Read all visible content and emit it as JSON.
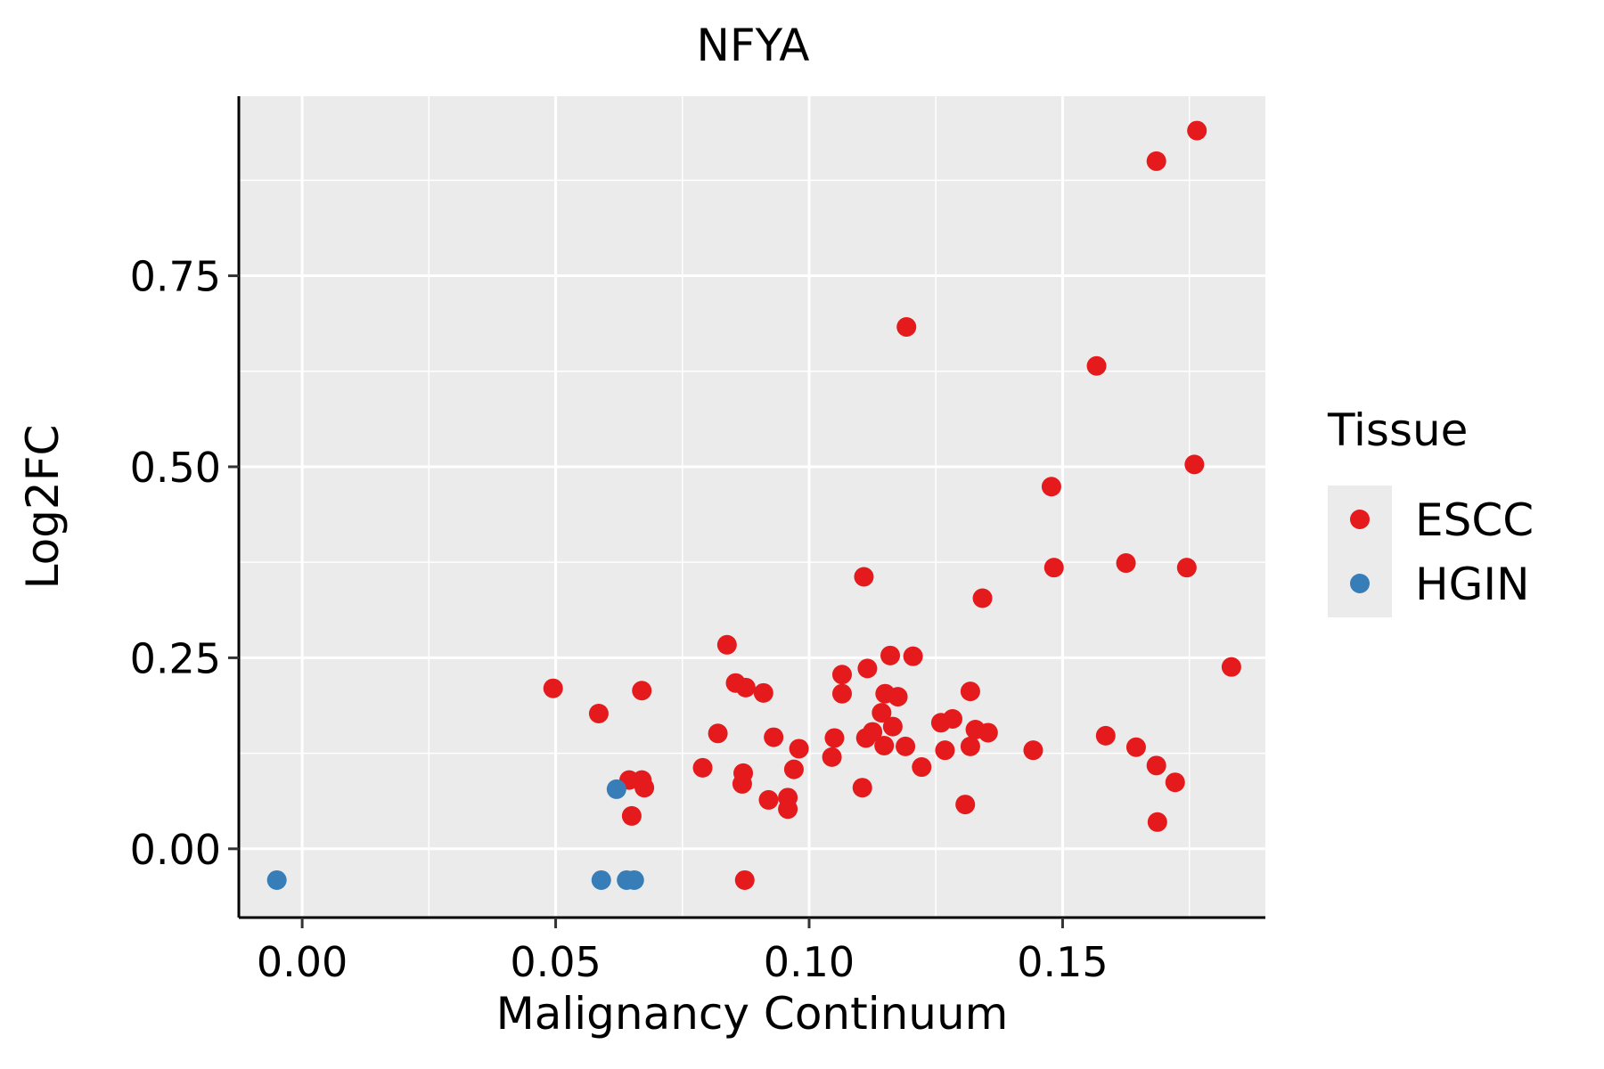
{
  "chart_data": {
    "type": "scatter",
    "title": "NFYA",
    "xlabel": "Malignancy Continuum",
    "ylabel": "Log2FC",
    "xlim": [
      -0.0125,
      0.19
    ],
    "ylim": [
      -0.09,
      0.985
    ],
    "x_ticks": [
      0.0,
      0.05,
      0.1,
      0.15
    ],
    "x_tick_labels": [
      "0.00",
      "0.05",
      "0.10",
      "0.15"
    ],
    "y_ticks": [
      0.0,
      0.25,
      0.5,
      0.75
    ],
    "y_tick_labels": [
      "0.00",
      "0.25",
      "0.50",
      "0.75"
    ],
    "grid": true,
    "legend": {
      "title": "Tissue",
      "position": "right"
    },
    "series": [
      {
        "name": "ESCC",
        "color": "#E41A1C",
        "points": [
          [
            0.0495,
            0.21
          ],
          [
            0.0585,
            0.177
          ],
          [
            0.067,
            0.207
          ],
          [
            0.0645,
            0.09
          ],
          [
            0.067,
            0.09
          ],
          [
            0.0675,
            0.08
          ],
          [
            0.065,
            0.043
          ],
          [
            0.079,
            0.106
          ],
          [
            0.082,
            0.151
          ],
          [
            0.0838,
            0.267
          ],
          [
            0.0855,
            0.217
          ],
          [
            0.0875,
            0.211
          ],
          [
            0.087,
            0.099
          ],
          [
            0.0868,
            0.085
          ],
          [
            0.091,
            0.204
          ],
          [
            0.093,
            0.146
          ],
          [
            0.092,
            0.064
          ],
          [
            0.0958,
            0.067
          ],
          [
            0.0958,
            0.052
          ],
          [
            0.097,
            0.104
          ],
          [
            0.098,
            0.131
          ],
          [
            0.0873,
            -0.041
          ],
          [
            0.1045,
            0.12
          ],
          [
            0.105,
            0.145
          ],
          [
            0.1065,
            0.228
          ],
          [
            0.1065,
            0.203
          ],
          [
            0.1105,
            0.08
          ],
          [
            0.1108,
            0.356
          ],
          [
            0.1115,
            0.236
          ],
          [
            0.1112,
            0.145
          ],
          [
            0.1125,
            0.153
          ],
          [
            0.1143,
            0.178
          ],
          [
            0.115,
            0.203
          ],
          [
            0.1148,
            0.135
          ],
          [
            0.116,
            0.253
          ],
          [
            0.1165,
            0.16
          ],
          [
            0.1175,
            0.199
          ],
          [
            0.119,
            0.134
          ],
          [
            0.1192,
            0.683
          ],
          [
            0.1205,
            0.252
          ],
          [
            0.1222,
            0.107
          ],
          [
            0.126,
            0.165
          ],
          [
            0.1268,
            0.129
          ],
          [
            0.1283,
            0.17
          ],
          [
            0.1308,
            0.058
          ],
          [
            0.1318,
            0.206
          ],
          [
            0.1318,
            0.134
          ],
          [
            0.1328,
            0.156
          ],
          [
            0.1342,
            0.328
          ],
          [
            0.1353,
            0.152
          ],
          [
            0.1442,
            0.129
          ],
          [
            0.1478,
            0.474
          ],
          [
            0.1483,
            0.368
          ],
          [
            0.1567,
            0.632
          ],
          [
            0.1585,
            0.148
          ],
          [
            0.1625,
            0.374
          ],
          [
            0.1645,
            0.133
          ],
          [
            0.1685,
            0.9
          ],
          [
            0.1685,
            0.109
          ],
          [
            0.1687,
            0.035
          ],
          [
            0.1722,
            0.087
          ],
          [
            0.1745,
            0.368
          ],
          [
            0.176,
            0.503
          ],
          [
            0.1765,
            0.94
          ],
          [
            0.1833,
            0.238
          ]
        ]
      },
      {
        "name": "HGIN",
        "color": "#377EB8",
        "points": [
          [
            -0.005,
            -0.041
          ],
          [
            0.059,
            -0.041
          ],
          [
            0.062,
            0.078
          ],
          [
            0.064,
            -0.041
          ],
          [
            0.0655,
            -0.041
          ]
        ]
      }
    ]
  }
}
